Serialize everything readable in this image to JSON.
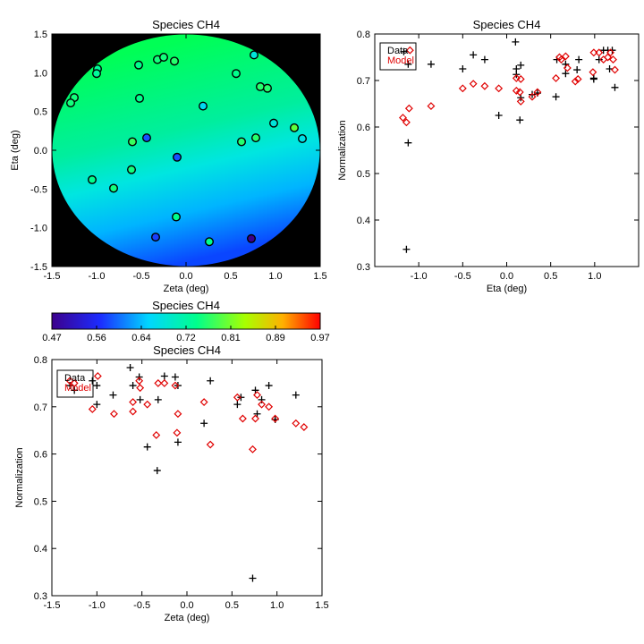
{
  "chart_data": [
    {
      "id": "map",
      "type": "scatter",
      "title": "Species CH4",
      "xlabel": "Zeta (deg)",
      "ylabel": "Eta (deg)",
      "xlim": [
        -1.5,
        1.5
      ],
      "ylim": [
        -1.5,
        1.5
      ],
      "xticks": [
        "-1.5",
        "-1.0",
        "-0.5",
        "0.0",
        "0.5",
        "1.0",
        "1.5"
      ],
      "yticks": [
        "-1.5",
        "-1.0",
        "-0.5",
        "0.0",
        "0.5",
        "1.0",
        "1.5"
      ],
      "grid": false,
      "background": "#000000",
      "points": [
        {
          "zeta": -0.99,
          "eta": 1.05,
          "value": 0.73
        },
        {
          "zeta": -1.0,
          "eta": 0.99,
          "value": 0.73
        },
        {
          "zeta": -1.25,
          "eta": 0.68,
          "value": 0.75
        },
        {
          "zeta": -1.29,
          "eta": 0.61,
          "value": 0.75
        },
        {
          "zeta": -0.53,
          "eta": 1.1,
          "value": 0.74
        },
        {
          "zeta": -0.32,
          "eta": 1.17,
          "value": 0.75
        },
        {
          "zeta": -0.25,
          "eta": 1.2,
          "value": 0.75
        },
        {
          "zeta": -0.13,
          "eta": 1.15,
          "value": 0.76
        },
        {
          "zeta": 0.56,
          "eta": 0.99,
          "value": 0.74
        },
        {
          "zeta": 0.76,
          "eta": 1.23,
          "value": 0.68
        },
        {
          "zeta": 0.83,
          "eta": 0.82,
          "value": 0.76
        },
        {
          "zeta": 0.91,
          "eta": 0.8,
          "value": 0.76
        },
        {
          "zeta": -0.52,
          "eta": 0.67,
          "value": 0.74
        },
        {
          "zeta": 0.19,
          "eta": 0.57,
          "value": 0.66
        },
        {
          "zeta": -0.6,
          "eta": 0.11,
          "value": 0.77
        },
        {
          "zeta": -0.44,
          "eta": 0.16,
          "value": 0.58
        },
        {
          "zeta": 0.62,
          "eta": 0.11,
          "value": 0.76
        },
        {
          "zeta": 0.78,
          "eta": 0.16,
          "value": 0.76
        },
        {
          "zeta": 0.98,
          "eta": 0.35,
          "value": 0.68
        },
        {
          "zeta": 1.21,
          "eta": 0.29,
          "value": 0.79
        },
        {
          "zeta": 1.3,
          "eta": 0.15,
          "value": 0.67
        },
        {
          "zeta": -0.1,
          "eta": -0.09,
          "value": 0.58
        },
        {
          "zeta": -0.61,
          "eta": -0.25,
          "value": 0.75
        },
        {
          "zeta": -1.05,
          "eta": -0.38,
          "value": 0.74
        },
        {
          "zeta": -0.81,
          "eta": -0.49,
          "value": 0.75
        },
        {
          "zeta": -0.11,
          "eta": -0.86,
          "value": 0.74
        },
        {
          "zeta": -0.34,
          "eta": -1.12,
          "value": 0.57
        },
        {
          "zeta": 0.26,
          "eta": -1.18,
          "value": 0.74
        },
        {
          "zeta": 0.73,
          "eta": -1.14,
          "value": 0.34
        }
      ]
    },
    {
      "id": "colorbar",
      "type": "heatmap",
      "title": "Species CH4",
      "range": [
        0.47,
        0.97
      ],
      "ticks": [
        "0.47",
        "0.56",
        "0.64",
        "0.72",
        "0.81",
        "0.89",
        "0.97"
      ]
    },
    {
      "id": "eta",
      "type": "scatter",
      "title": "Species CH4",
      "xlabel": "Eta (deg)",
      "ylabel": "Normalization",
      "xlim": [
        -1.5,
        1.5
      ],
      "ylim": [
        0.3,
        0.8
      ],
      "xticks": [
        "-1.0",
        "-0.5",
        "0.0",
        "0.5",
        "1.0"
      ],
      "yticks": [
        "0.3",
        "0.4",
        "0.5",
        "0.6",
        "0.7",
        "0.8"
      ],
      "legend": {
        "position": "top-left",
        "entries": [
          {
            "label": "Data",
            "color": "#000000"
          },
          {
            "label": "Model",
            "color": "#e00000"
          }
        ]
      },
      "series": [
        {
          "name": "Data",
          "marker": "plus",
          "color": "#000000",
          "x": [
            -1.17,
            -1.14,
            -1.12,
            -1.12,
            -0.86,
            -0.5,
            -0.38,
            -0.25,
            -0.09,
            0.1,
            0.11,
            0.11,
            0.15,
            0.16,
            0.16,
            0.29,
            0.35,
            0.56,
            0.57,
            0.67,
            0.67,
            0.82,
            0.8,
            0.99,
            0.99,
            1.05,
            1.1,
            1.15,
            1.17,
            1.2,
            1.23
          ],
          "y": [
            0.762,
            0.337,
            0.566,
            0.735,
            0.735,
            0.725,
            0.755,
            0.745,
            0.625,
            0.783,
            0.725,
            0.713,
            0.615,
            0.663,
            0.733,
            0.67,
            0.673,
            0.665,
            0.745,
            0.715,
            0.735,
            0.745,
            0.723,
            0.705,
            0.703,
            0.745,
            0.765,
            0.765,
            0.725,
            0.765,
            0.685
          ]
        },
        {
          "name": "Model",
          "marker": "diamond",
          "color": "#e00000",
          "x": [
            -1.18,
            -1.14,
            -1.11,
            -1.1,
            -0.86,
            -0.5,
            -0.38,
            -0.25,
            -0.09,
            0.11,
            0.16,
            0.15,
            0.16,
            0.11,
            0.29,
            0.35,
            0.56,
            0.6,
            0.62,
            0.67,
            0.69,
            0.78,
            0.81,
            0.98,
            0.99,
            1.05,
            1.1,
            1.15,
            1.18,
            1.21,
            1.23
          ],
          "y": [
            0.62,
            0.61,
            0.64,
            0.765,
            0.645,
            0.683,
            0.693,
            0.688,
            0.683,
            0.705,
            0.703,
            0.675,
            0.655,
            0.678,
            0.665,
            0.675,
            0.705,
            0.75,
            0.745,
            0.752,
            0.727,
            0.698,
            0.703,
            0.718,
            0.76,
            0.76,
            0.745,
            0.75,
            0.76,
            0.745,
            0.723
          ]
        }
      ]
    },
    {
      "id": "zeta",
      "type": "scatter",
      "title": "Species CH4",
      "xlabel": "Zeta (deg)",
      "ylabel": "Normalization",
      "xlim": [
        -1.5,
        1.5
      ],
      "ylim": [
        0.3,
        0.8
      ],
      "xticks": [
        "-1.5",
        "-1.0",
        "-0.5",
        "0.0",
        "0.5",
        "1.0",
        "1.5"
      ],
      "yticks": [
        "0.3",
        "0.4",
        "0.5",
        "0.6",
        "0.7",
        "0.8"
      ],
      "legend": {
        "position": "top-left",
        "entries": [
          {
            "label": "Data",
            "color": "#000000"
          },
          {
            "label": "Model",
            "color": "#e00000"
          }
        ]
      },
      "series": [
        {
          "name": "Data",
          "marker": "plus",
          "color": "#000000",
          "x": [
            -1.3,
            -1.25,
            -1.05,
            -1.0,
            -1.0,
            -0.82,
            -0.63,
            -0.6,
            -0.52,
            -0.53,
            -0.44,
            -0.33,
            -0.32,
            -0.25,
            -0.13,
            -0.1,
            -0.1,
            0.19,
            0.26,
            0.56,
            0.6,
            0.73,
            0.76,
            0.78,
            0.83,
            0.91,
            0.98,
            1.21
          ],
          "y": [
            0.745,
            0.735,
            0.755,
            0.745,
            0.705,
            0.725,
            0.783,
            0.745,
            0.715,
            0.763,
            0.615,
            0.565,
            0.715,
            0.765,
            0.763,
            0.745,
            0.625,
            0.665,
            0.755,
            0.705,
            0.72,
            0.337,
            0.735,
            0.685,
            0.715,
            0.745,
            0.673,
            0.725
          ]
        },
        {
          "name": "Model",
          "marker": "diamond",
          "color": "#e00000",
          "x": [
            -1.3,
            -1.25,
            -1.05,
            -0.99,
            -0.81,
            -0.6,
            -0.6,
            -0.53,
            -0.52,
            -0.44,
            -0.34,
            -0.32,
            -0.25,
            -0.13,
            -0.11,
            -0.1,
            0.19,
            0.26,
            0.56,
            0.62,
            0.73,
            0.76,
            0.78,
            0.83,
            0.91,
            0.98,
            1.21,
            1.3
          ],
          "y": [
            0.755,
            0.75,
            0.695,
            0.765,
            0.685,
            0.71,
            0.69,
            0.755,
            0.74,
            0.705,
            0.64,
            0.75,
            0.75,
            0.745,
            0.645,
            0.685,
            0.71,
            0.62,
            0.72,
            0.675,
            0.61,
            0.675,
            0.725,
            0.705,
            0.7,
            0.675,
            0.665,
            0.657
          ]
        }
      ]
    }
  ]
}
